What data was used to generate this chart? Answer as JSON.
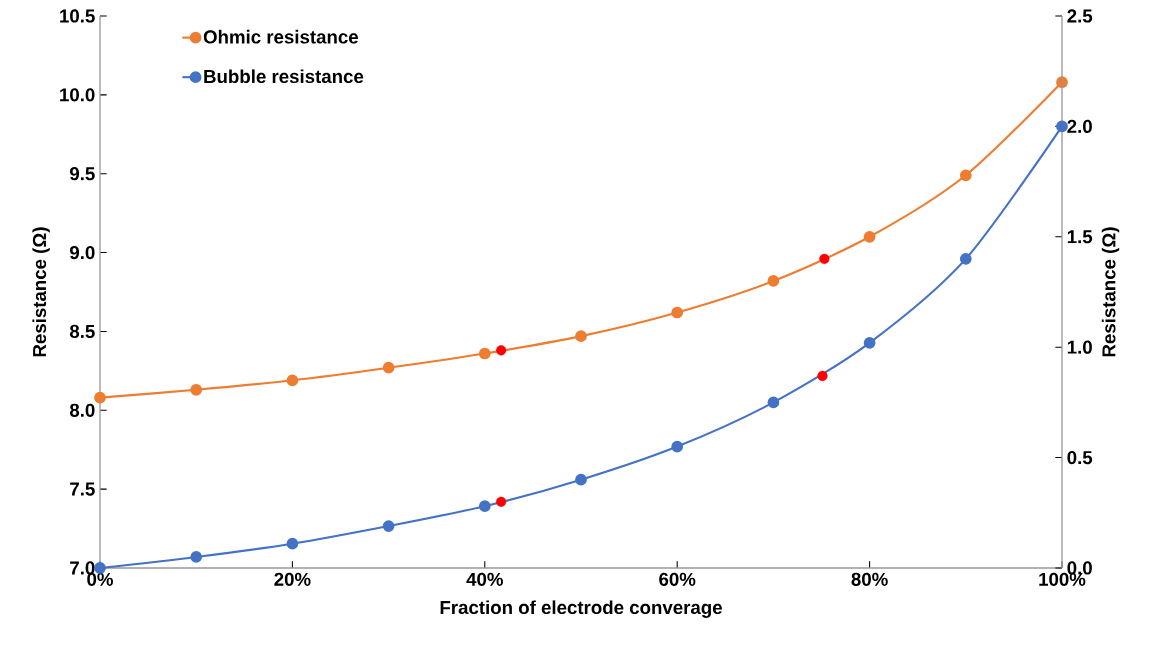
{
  "chart_data": {
    "type": "line",
    "xlabel": "Fraction of electrode converage",
    "ylabel": "Resistance (Ω)",
    "y2label": "Resistance (Ω)",
    "x": [
      0,
      10,
      20,
      30,
      40,
      50,
      60,
      70,
      80,
      90,
      100
    ],
    "xlim": [
      0,
      100
    ],
    "xticks": [
      {
        "value": 0,
        "label": "0%"
      },
      {
        "value": 20,
        "label": "20%"
      },
      {
        "value": 40,
        "label": "40%"
      },
      {
        "value": 60,
        "label": "60%"
      },
      {
        "value": 80,
        "label": "80%"
      },
      {
        "value": 100,
        "label": "100%"
      }
    ],
    "ylim": [
      7,
      10.5
    ],
    "yticks": [
      {
        "value": 7,
        "label": "7.0"
      },
      {
        "value": 7.5,
        "label": "7.5"
      },
      {
        "value": 8,
        "label": "8.0"
      },
      {
        "value": 8.5,
        "label": "8.5"
      },
      {
        "value": 9,
        "label": "9.0"
      },
      {
        "value": 9.5,
        "label": "9.5"
      },
      {
        "value": 10,
        "label": "10.0"
      },
      {
        "value": 10.5,
        "label": "10.5"
      }
    ],
    "y2lim": [
      0,
      2.5
    ],
    "y2ticks": [
      {
        "value": 0,
        "label": "0.0"
      },
      {
        "value": 0.5,
        "label": "0.5"
      },
      {
        "value": 1,
        "label": "1.0"
      },
      {
        "value": 1.5,
        "label": "1.5"
      },
      {
        "value": 2,
        "label": "2.0"
      },
      {
        "value": 2.5,
        "label": "2.5"
      }
    ],
    "legend": "top left",
    "marker": "circle",
    "line_style": "solid",
    "series": [
      {
        "name": "Ohmic resistance",
        "color": "#ed7d31",
        "values": [
          8.08,
          8.13,
          8.19,
          8.27,
          8.36,
          8.47,
          8.62,
          8.82,
          9.1,
          9.49,
          10.08
        ]
      },
      {
        "name": "Bubble resistance",
        "color": "#4472c4",
        "axis": "y2",
        "values": [
          0,
          0.05,
          0.11,
          0.19,
          0.28,
          0.4,
          0.55,
          0.75,
          1.02,
          1.4,
          2.0
        ]
      },
      {
        "type": "scatter",
        "color": "#ff0000",
        "x": [
          41.7,
          75.3
        ],
        "values": [
          8.38,
          8.96
        ]
      },
      {
        "type": "scatter",
        "color": "#ff0000",
        "axis": "y2",
        "x": [
          41.7,
          75.1
        ],
        "values": [
          0.3,
          0.87
        ]
      }
    ]
  }
}
